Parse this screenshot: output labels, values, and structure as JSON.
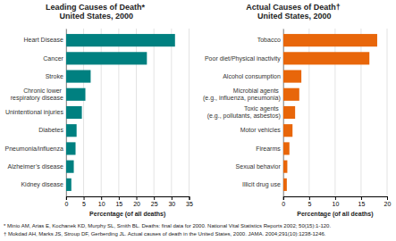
{
  "chart_data": [
    {
      "type": "bar",
      "orientation": "horizontal",
      "title": "Leading Causes of Death*\nUnited States, 2000",
      "categories": [
        "Heart Disease",
        "Cancer",
        "Stroke",
        "Chronic lower\nrespiratory disease",
        "Unintentional injuries",
        "Diabetes",
        "Pneumonia/influenza",
        "Alzheimer’s disease",
        "Kidney disease"
      ],
      "values": [
        31,
        23,
        7,
        5.5,
        4.5,
        3,
        2.7,
        2.2,
        1.5
      ],
      "color": "#008080",
      "xlim": [
        0,
        35
      ],
      "xticks": [
        0,
        5,
        10,
        15,
        20,
        25,
        30,
        35
      ],
      "xlabel": "Percentage (of all deaths)",
      "grid": true,
      "annotations": [
        "* Minio AM, Arias E, Kochanek KD, Murphy SL, Smith BL. Deaths: final data for 2000. National Vital Statistics Reports 2002; 50(15):1-120."
      ]
    },
    {
      "type": "bar",
      "orientation": "horizontal",
      "title": "Actual Causes of Death†\nUnited States, 2000",
      "categories": [
        "Tobacco",
        "Poor diet/Physical inactivity",
        "Alcohol consumption",
        "Microbial agents\n(e.g., influenza, pneumonia)",
        "Toxic agents\n(e.g., pollutants, asbestos)",
        "Motor vehicles",
        "Firearms",
        "Sexual behavior",
        "Illicit drug use"
      ],
      "values": [
        18.1,
        16.6,
        3.5,
        3.1,
        2.3,
        1.8,
        1.2,
        0.8,
        0.7
      ],
      "color": "#E8660A",
      "xlim": [
        0,
        20
      ],
      "xticks": [
        0,
        5,
        10,
        15,
        20
      ],
      "xlabel": "Percentage (of all deaths)",
      "grid": true,
      "annotations": [
        "† Mokdad AH, Marks JS, Stroup DF, Gerberding JL.  Actual causes of death in the United States, 2000.  JAMA. 2004;291(10):1238-1246."
      ]
    }
  ]
}
